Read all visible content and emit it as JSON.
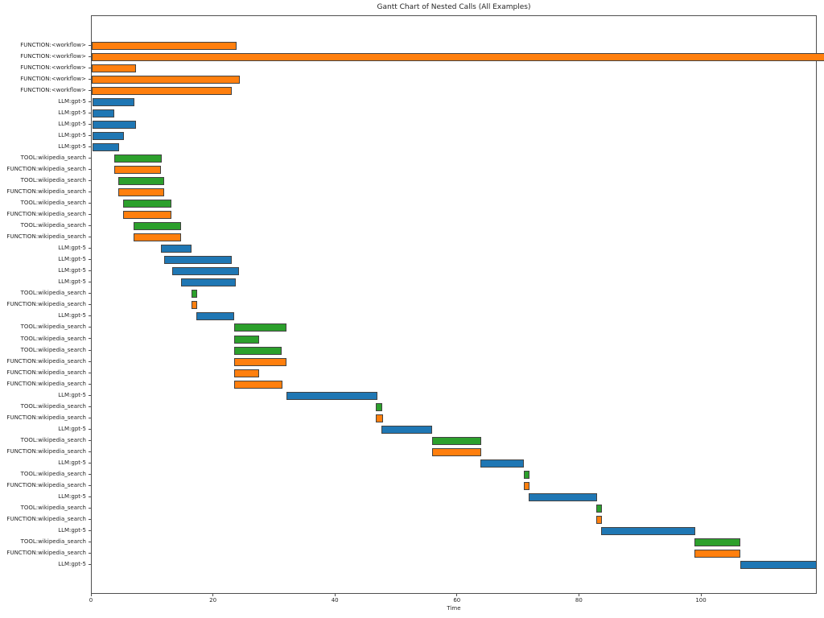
{
  "chart_data": {
    "type": "bar",
    "variant": "horizontal-gantt",
    "title": "Gantt Chart of Nested Calls (All Examples)",
    "xlabel": "Time",
    "xlim": [
      0,
      119
    ],
    "xticks": [
      0,
      20,
      40,
      60,
      80,
      100
    ],
    "grid": false,
    "legend": "none",
    "colors": {
      "FUNCTION": "#ff7f0e",
      "LLM": "#1f77b4",
      "TOOL": "#2ca02c",
      "bar_edge": "#424242",
      "axis": "#4f4f4f",
      "text": "#262626"
    },
    "rows": [
      {
        "label": "FUNCTION:<workflow>",
        "type": "FUNCTION",
        "start": 0,
        "end": 23.7
      },
      {
        "label": "FUNCTION:<workflow>",
        "type": "FUNCTION",
        "start": 0,
        "end": 120.2
      },
      {
        "label": "FUNCTION:<workflow>",
        "type": "FUNCTION",
        "start": 0,
        "end": 7.3
      },
      {
        "label": "FUNCTION:<workflow>",
        "type": "FUNCTION",
        "start": 0,
        "end": 24.3
      },
      {
        "label": "FUNCTION:<workflow>",
        "type": "FUNCTION",
        "start": 0,
        "end": 23.0
      },
      {
        "label": "LLM:gpt-5",
        "type": "LLM",
        "start": 0.1,
        "end": 7.0
      },
      {
        "label": "LLM:gpt-5",
        "type": "LLM",
        "start": 0.1,
        "end": 3.7
      },
      {
        "label": "LLM:gpt-5",
        "type": "LLM",
        "start": 0.1,
        "end": 7.3
      },
      {
        "label": "LLM:gpt-5",
        "type": "LLM",
        "start": 0.1,
        "end": 5.3
      },
      {
        "label": "LLM:gpt-5",
        "type": "LLM",
        "start": 0.1,
        "end": 4.5
      },
      {
        "label": "TOOL:wikipedia_search",
        "type": "TOOL",
        "start": 3.7,
        "end": 11.5
      },
      {
        "label": "FUNCTION:wikipedia_search",
        "type": "FUNCTION",
        "start": 3.7,
        "end": 11.4
      },
      {
        "label": "TOOL:wikipedia_search",
        "type": "TOOL",
        "start": 4.4,
        "end": 11.9
      },
      {
        "label": "FUNCTION:wikipedia_search",
        "type": "FUNCTION",
        "start": 4.4,
        "end": 11.9
      },
      {
        "label": "TOOL:wikipedia_search",
        "type": "TOOL",
        "start": 5.1,
        "end": 13.1
      },
      {
        "label": "FUNCTION:wikipedia_search",
        "type": "FUNCTION",
        "start": 5.2,
        "end": 13.1
      },
      {
        "label": "TOOL:wikipedia_search",
        "type": "TOOL",
        "start": 6.9,
        "end": 14.7
      },
      {
        "label": "FUNCTION:wikipedia_search",
        "type": "FUNCTION",
        "start": 6.9,
        "end": 14.7
      },
      {
        "label": "LLM:gpt-5",
        "type": "LLM",
        "start": 11.3,
        "end": 16.4
      },
      {
        "label": "LLM:gpt-5",
        "type": "LLM",
        "start": 11.9,
        "end": 22.9
      },
      {
        "label": "LLM:gpt-5",
        "type": "LLM",
        "start": 13.2,
        "end": 24.2
      },
      {
        "label": "LLM:gpt-5",
        "type": "LLM",
        "start": 14.6,
        "end": 23.6
      },
      {
        "label": "TOOL:wikipedia_search",
        "type": "TOOL",
        "start": 16.4,
        "end": 17.3
      },
      {
        "label": "FUNCTION:wikipedia_search",
        "type": "FUNCTION",
        "start": 16.3,
        "end": 17.3
      },
      {
        "label": "LLM:gpt-5",
        "type": "LLM",
        "start": 17.2,
        "end": 23.3
      },
      {
        "label": "TOOL:wikipedia_search",
        "type": "TOOL",
        "start": 23.3,
        "end": 32.0
      },
      {
        "label": "TOOL:wikipedia_search",
        "type": "TOOL",
        "start": 23.3,
        "end": 27.5
      },
      {
        "label": "TOOL:wikipedia_search",
        "type": "TOOL",
        "start": 23.3,
        "end": 31.2
      },
      {
        "label": "FUNCTION:wikipedia_search",
        "type": "FUNCTION",
        "start": 23.3,
        "end": 32.0
      },
      {
        "label": "FUNCTION:wikipedia_search",
        "type": "FUNCTION",
        "start": 23.3,
        "end": 27.5
      },
      {
        "label": "FUNCTION:wikipedia_search",
        "type": "FUNCTION",
        "start": 23.3,
        "end": 31.3
      },
      {
        "label": "LLM:gpt-5",
        "type": "LLM",
        "start": 31.9,
        "end": 46.8
      },
      {
        "label": "TOOL:wikipedia_search",
        "type": "TOOL",
        "start": 46.6,
        "end": 47.6
      },
      {
        "label": "FUNCTION:wikipedia_search",
        "type": "FUNCTION",
        "start": 46.6,
        "end": 47.8
      },
      {
        "label": "LLM:gpt-5",
        "type": "LLM",
        "start": 47.5,
        "end": 55.8
      },
      {
        "label": "TOOL:wikipedia_search",
        "type": "TOOL",
        "start": 55.8,
        "end": 63.8
      },
      {
        "label": "FUNCTION:wikipedia_search",
        "type": "FUNCTION",
        "start": 55.8,
        "end": 63.9
      },
      {
        "label": "LLM:gpt-5",
        "type": "LLM",
        "start": 63.7,
        "end": 70.9
      },
      {
        "label": "TOOL:wikipedia_search",
        "type": "TOOL",
        "start": 70.8,
        "end": 71.8
      },
      {
        "label": "FUNCTION:wikipedia_search",
        "type": "FUNCTION",
        "start": 70.8,
        "end": 71.8
      },
      {
        "label": "LLM:gpt-5",
        "type": "LLM",
        "start": 71.6,
        "end": 82.8
      },
      {
        "label": "TOOL:wikipedia_search",
        "type": "TOOL",
        "start": 82.7,
        "end": 83.6
      },
      {
        "label": "FUNCTION:wikipedia_search",
        "type": "FUNCTION",
        "start": 82.7,
        "end": 83.6
      },
      {
        "label": "LLM:gpt-5",
        "type": "LLM",
        "start": 83.5,
        "end": 98.9
      },
      {
        "label": "TOOL:wikipedia_search",
        "type": "TOOL",
        "start": 98.8,
        "end": 106.3
      },
      {
        "label": "FUNCTION:wikipedia_search",
        "type": "FUNCTION",
        "start": 98.8,
        "end": 106.3
      },
      {
        "label": "LLM:gpt-5",
        "type": "LLM",
        "start": 106.3,
        "end": 118.9
      }
    ]
  }
}
